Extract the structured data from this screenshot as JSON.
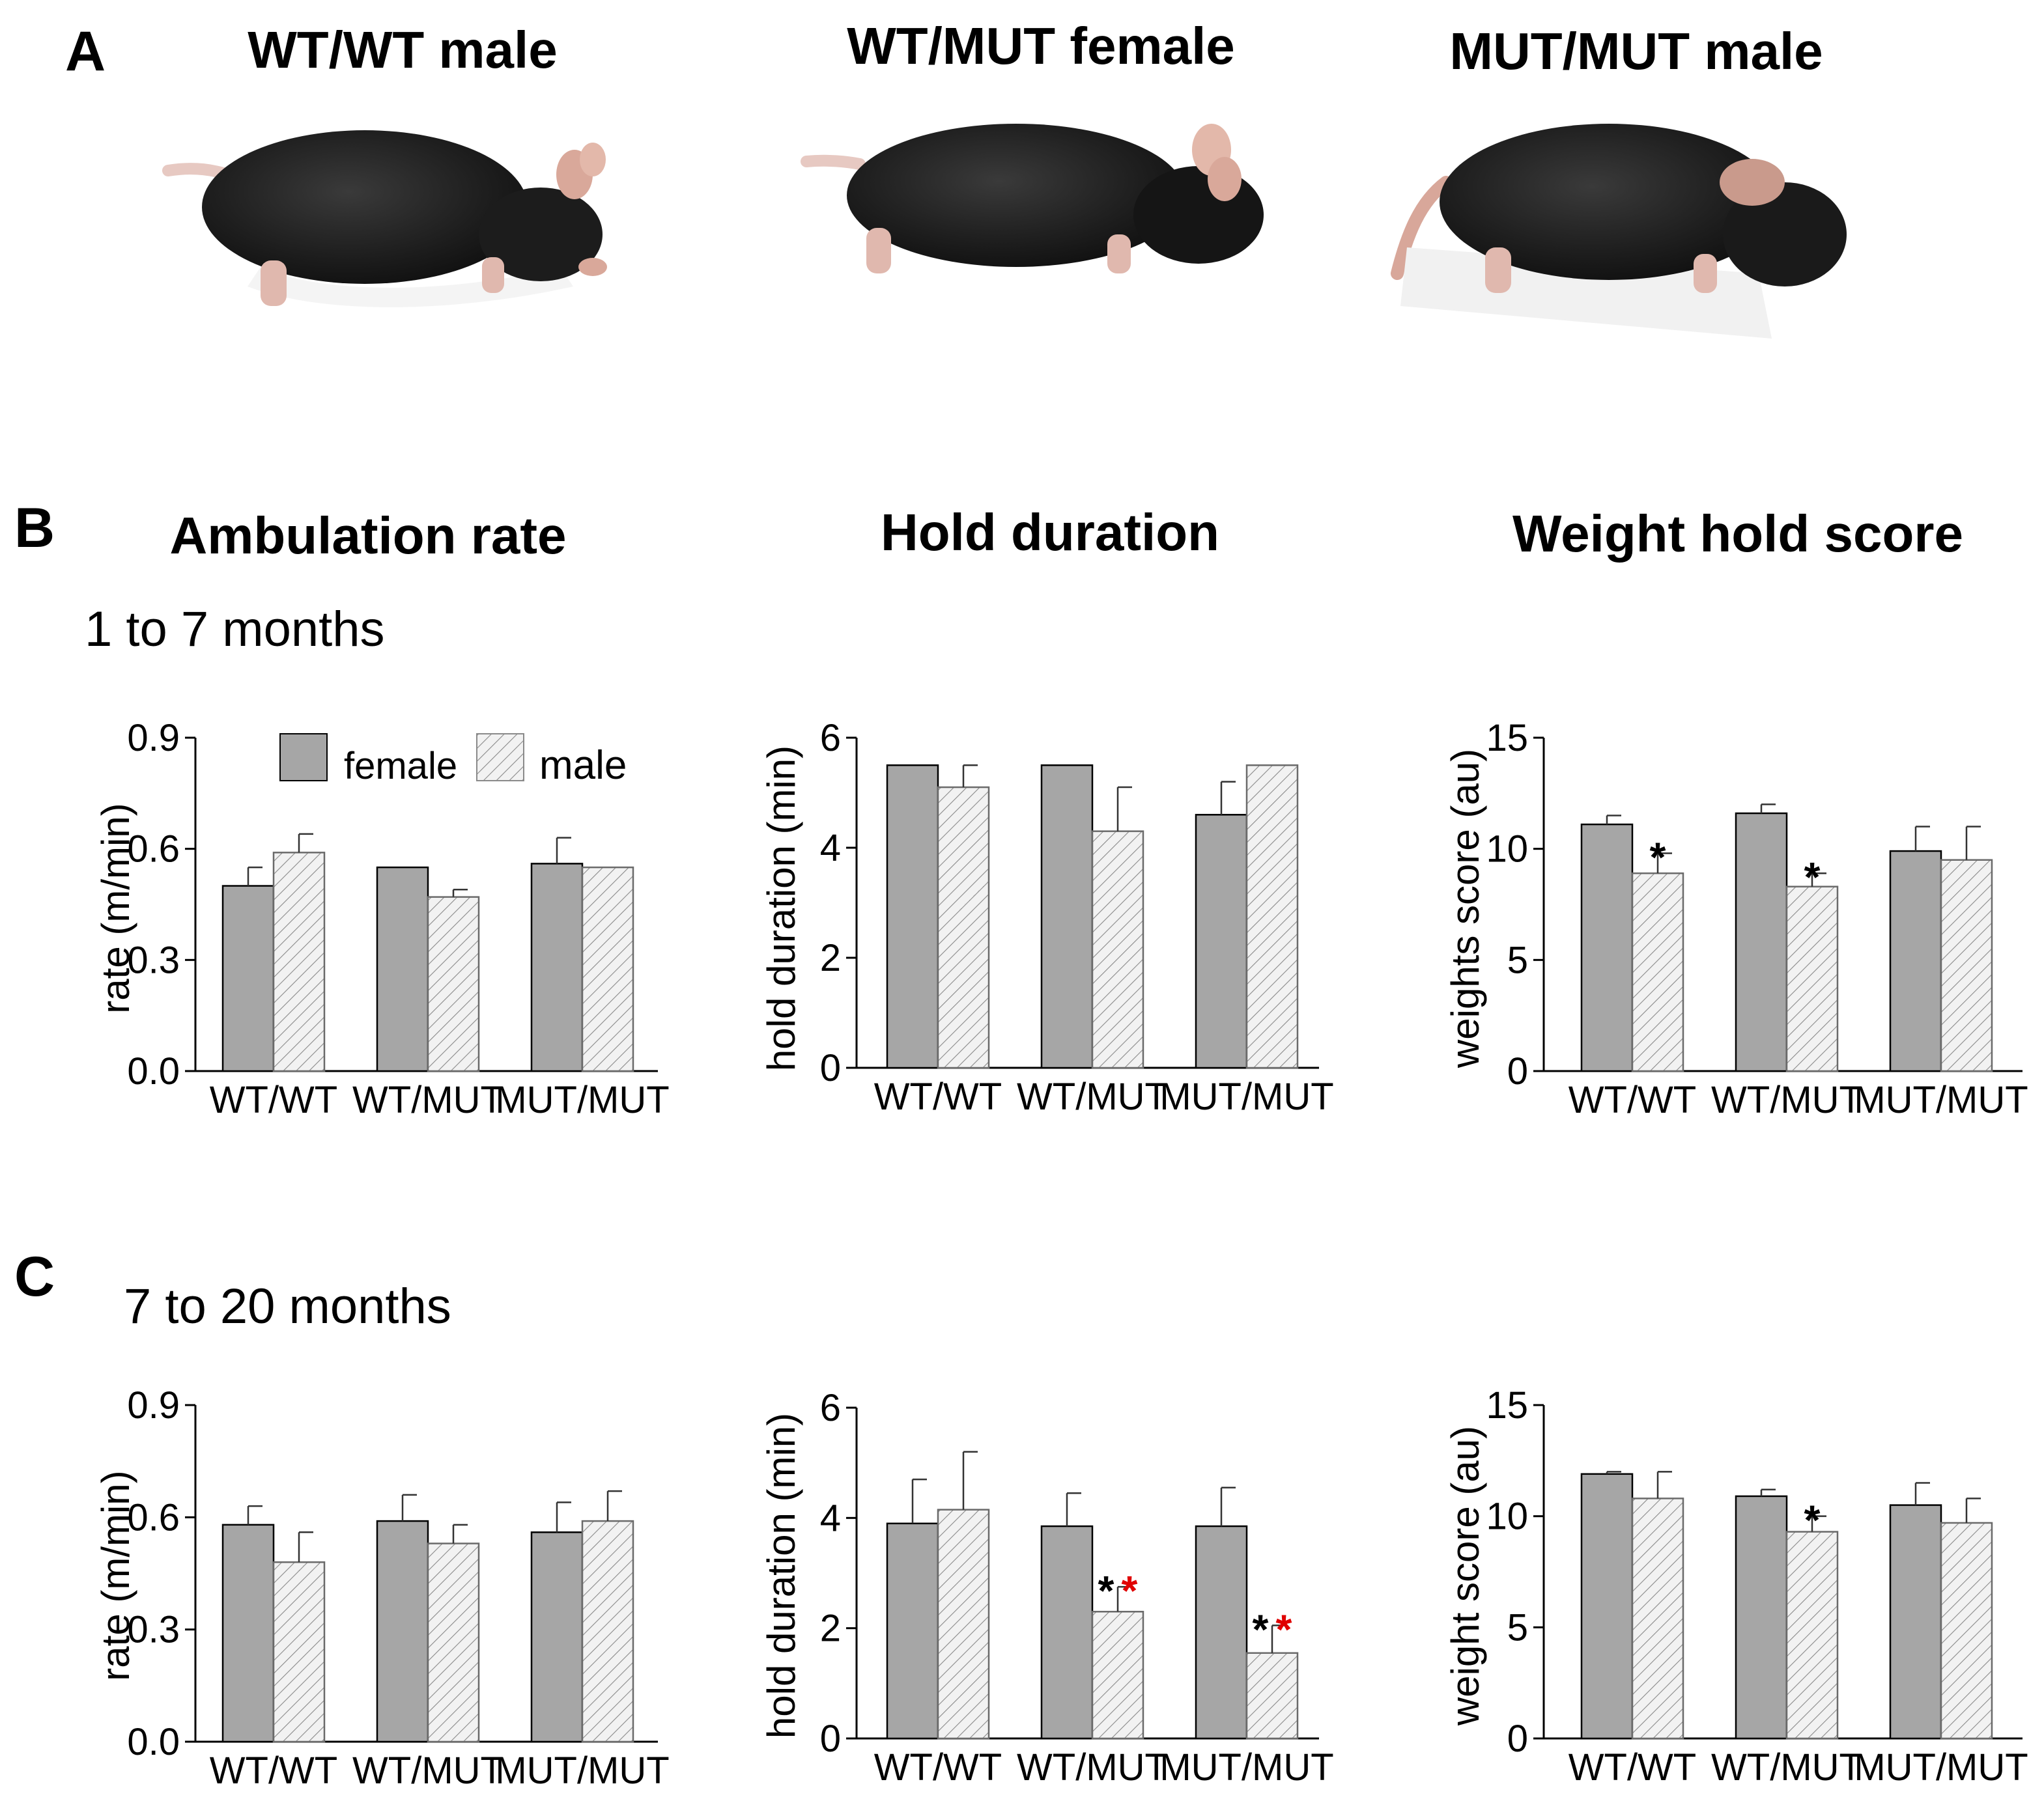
{
  "panels": {
    "A": {
      "label": "A",
      "mice": [
        {
          "caption": "WT/WT male",
          "icon": "mouse-photo"
        },
        {
          "caption": "WT/MUT female",
          "icon": "mouse-photo"
        },
        {
          "caption": "MUT/MUT male",
          "icon": "mouse-photo"
        }
      ]
    },
    "B": {
      "label": "B",
      "subtitle": "1 to 7 months"
    },
    "C": {
      "label": "C",
      "subtitle": "7 to 20 months"
    }
  },
  "column_titles": [
    "Ambulation rate",
    "Hold duration",
    "Weight hold score"
  ],
  "legend": {
    "female": "female",
    "male": "male"
  },
  "colors": {
    "female_fill": "#a6a6a6",
    "male_fill": "#f2f2f2",
    "hatch": "#8a8a8a",
    "sig_black": "#000000",
    "sig_red": "#e00000"
  },
  "chart_data": [
    {
      "id": "B-ambulation",
      "row": "B",
      "type": "bar",
      "categories": [
        "WT/WT",
        "WT/MUT",
        "MUT/MUT"
      ],
      "ylabel": "rate (m/min)",
      "ylim": [
        0,
        0.9
      ],
      "ticks": [
        0,
        0.3,
        0.6,
        0.9
      ],
      "tick_labels": [
        "0.0",
        "0.3",
        "0.6",
        "0.9"
      ],
      "series": [
        {
          "name": "female",
          "values": [
            0.5,
            0.55,
            0.56
          ],
          "errors": [
            0.05,
            0.0,
            0.07
          ]
        },
        {
          "name": "male",
          "values": [
            0.59,
            0.47,
            0.55
          ],
          "errors": [
            0.05,
            0.02,
            0.0
          ]
        }
      ],
      "significance": [],
      "legend": "top-left"
    },
    {
      "id": "B-hold",
      "row": "B",
      "type": "bar",
      "categories": [
        "WT/WT",
        "WT/MUT",
        "MUT/MUT"
      ],
      "ylabel": "hold duration (min)",
      "ylim": [
        0,
        6
      ],
      "ticks": [
        0,
        2,
        4,
        6
      ],
      "tick_labels": [
        "0",
        "2",
        "4",
        "6"
      ],
      "series": [
        {
          "name": "female",
          "values": [
            5.5,
            5.5,
            4.6
          ],
          "errors": [
            0.0,
            0.0,
            0.6
          ]
        },
        {
          "name": "male",
          "values": [
            5.1,
            4.3,
            5.5
          ],
          "errors": [
            0.4,
            0.8,
            0.0
          ]
        }
      ],
      "significance": []
    },
    {
      "id": "B-weight",
      "row": "B",
      "type": "bar",
      "categories": [
        "WT/WT",
        "WT/MUT",
        "MUT/MUT"
      ],
      "ylabel": "weights  score (au)",
      "ylim": [
        0,
        15
      ],
      "ticks": [
        0,
        5,
        10,
        15
      ],
      "tick_labels": [
        "0",
        "5",
        "10",
        "15"
      ],
      "series": [
        {
          "name": "female",
          "values": [
            11.1,
            11.6,
            9.9
          ],
          "errors": [
            0.4,
            0.4,
            1.1
          ]
        },
        {
          "name": "male",
          "values": [
            8.9,
            8.3,
            9.5
          ],
          "errors": [
            0.9,
            0.6,
            1.5
          ]
        }
      ],
      "significance": [
        {
          "category": 0,
          "series": 1,
          "marks": [
            {
              "text": "*",
              "color": "#000000"
            }
          ]
        },
        {
          "category": 1,
          "series": 1,
          "marks": [
            {
              "text": "*",
              "color": "#000000"
            }
          ]
        }
      ]
    },
    {
      "id": "C-ambulation",
      "row": "C",
      "type": "bar",
      "categories": [
        "WT/WT",
        "WT/MUT",
        "MUT/MUT"
      ],
      "ylabel": "rate (m/min)",
      "ylim": [
        0,
        0.9
      ],
      "ticks": [
        0,
        0.3,
        0.6,
        0.9
      ],
      "tick_labels": [
        "0.0",
        "0.3",
        "0.6",
        "0.9"
      ],
      "series": [
        {
          "name": "female",
          "values": [
            0.58,
            0.59,
            0.56
          ],
          "errors": [
            0.05,
            0.07,
            0.08
          ]
        },
        {
          "name": "male",
          "values": [
            0.48,
            0.53,
            0.59
          ],
          "errors": [
            0.08,
            0.05,
            0.08
          ]
        }
      ],
      "significance": []
    },
    {
      "id": "C-hold",
      "row": "C",
      "type": "bar",
      "categories": [
        "WT/WT",
        "WT/MUT",
        "MUT/MUT"
      ],
      "ylabel": "hold duration (min)",
      "ylim": [
        0,
        6
      ],
      "ticks": [
        0,
        2,
        4,
        6
      ],
      "tick_labels": [
        "0",
        "2",
        "4",
        "6"
      ],
      "series": [
        {
          "name": "female",
          "values": [
            3.9,
            3.85,
            3.85
          ],
          "errors": [
            0.8,
            0.6,
            0.7
          ]
        },
        {
          "name": "male",
          "values": [
            4.15,
            2.3,
            1.55
          ],
          "errors": [
            1.05,
            0.45,
            0.5
          ]
        }
      ],
      "significance": [
        {
          "category": 1,
          "series": 1,
          "marks": [
            {
              "text": "*",
              "color": "#000000"
            },
            {
              "text": "*",
              "color": "#e00000"
            }
          ]
        },
        {
          "category": 2,
          "series": 1,
          "marks": [
            {
              "text": "*",
              "color": "#000000"
            },
            {
              "text": "*",
              "color": "#e00000"
            }
          ]
        }
      ]
    },
    {
      "id": "C-weight",
      "row": "C",
      "type": "bar",
      "categories": [
        "WT/WT",
        "WT/MUT",
        "MUT/MUT"
      ],
      "ylabel": "weight score (au)",
      "ylim": [
        0,
        15
      ],
      "ticks": [
        0,
        5,
        10,
        15
      ],
      "tick_labels": [
        "0",
        "5",
        "10",
        "15"
      ],
      "series": [
        {
          "name": "female",
          "values": [
            11.9,
            10.9,
            10.5
          ],
          "errors": [
            0.1,
            0.3,
            1.0
          ]
        },
        {
          "name": "male",
          "values": [
            10.8,
            9.3,
            9.7
          ],
          "errors": [
            1.2,
            0.7,
            1.1
          ]
        }
      ],
      "significance": [
        {
          "category": 1,
          "series": 1,
          "marks": [
            {
              "text": "*",
              "color": "#000000"
            }
          ]
        }
      ]
    }
  ]
}
